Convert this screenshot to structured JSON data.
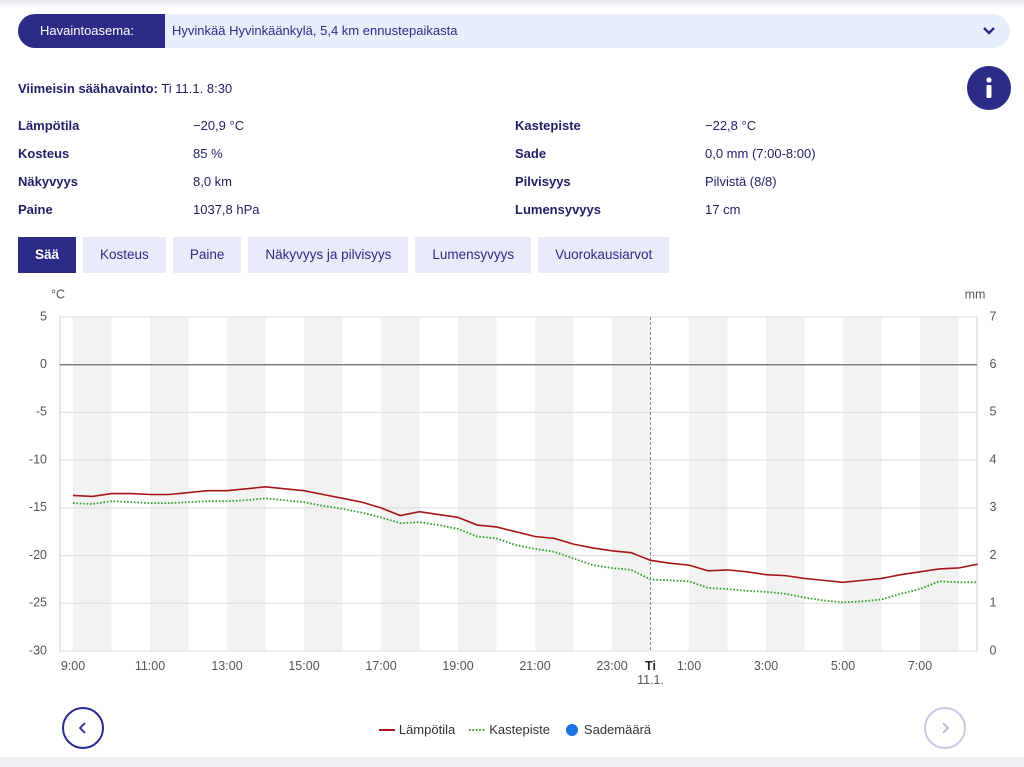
{
  "station": {
    "label": "Havaintoasema:",
    "value": "Hyvinkää Hyvinkäänkylä, 5,4 km ennustepaikasta"
  },
  "latest": {
    "label": "Viimeisin säähavainto:",
    "value": "Ti 11.1. 8:30"
  },
  "observations": [
    {
      "label": "Lämpötila",
      "value": "−20,9 °C"
    },
    {
      "label": "Kosteus",
      "value": "85 %"
    },
    {
      "label": "Näkyvyys",
      "value": "8,0 km"
    },
    {
      "label": "Paine",
      "value": "1037,8 hPa"
    },
    {
      "label": "Kastepiste",
      "value": "−22,8 °C"
    },
    {
      "label": "Sade",
      "value": "0,0 mm (7:00-8:00)"
    },
    {
      "label": "Pilvisyys",
      "value": "Pilvistä (8/8)"
    },
    {
      "label": "Lumensyvyys",
      "value": "17 cm"
    }
  ],
  "tabs": [
    "Sää",
    "Kosteus",
    "Paine",
    "Näkyvyys ja pilvisyys",
    "Lumensyvyys",
    "Vuorokausiarvot"
  ],
  "chart_data": {
    "type": "line",
    "y_label": "°C",
    "y2_label": "mm",
    "categories": [
      "9:00",
      null,
      null,
      null,
      "11:00",
      null,
      null,
      null,
      "13:00",
      null,
      null,
      null,
      "15:00",
      null,
      null,
      null,
      "17:00",
      null,
      null,
      null,
      "19:00",
      null,
      null,
      null,
      "21:00",
      null,
      null,
      null,
      "23:00",
      null,
      "Ti 11.1.",
      null,
      "1:00",
      null,
      null,
      null,
      "3:00",
      null,
      null,
      null,
      "5:00",
      null,
      null,
      null,
      "7:00",
      null,
      null,
      null
    ],
    "series": [
      {
        "name": "Lämpötila",
        "color": "#a4161a",
        "style": "solid",
        "values": [
          -13.7,
          -13.8,
          -13.5,
          -13.5,
          -13.6,
          -13.6,
          -13.4,
          -13.2,
          -13.2,
          -13.0,
          -12.8,
          -13.0,
          -13.2,
          -13.6,
          -14.0,
          -14.4,
          -15.0,
          -15.8,
          -15.4,
          -15.7,
          -16.0,
          -16.8,
          -17.0,
          -17.5,
          -18.0,
          -18.2,
          -18.8,
          -19.2,
          -19.5,
          -19.7,
          -20.5,
          -20.8,
          -21.0,
          -21.6,
          -21.5,
          -21.7,
          -22.0,
          -22.1,
          -22.4,
          -22.6,
          -22.8,
          -22.6,
          -22.4,
          -22.0,
          -21.7,
          -21.4,
          -21.3,
          -20.9
        ]
      },
      {
        "name": "Kastepiste",
        "color": "#2e9e2e",
        "style": "dotted",
        "values": [
          -14.5,
          -14.6,
          -14.3,
          -14.4,
          -14.5,
          -14.5,
          -14.4,
          -14.3,
          -14.3,
          -14.2,
          -14.0,
          -14.2,
          -14.4,
          -14.8,
          -15.1,
          -15.5,
          -16.0,
          -16.6,
          -16.5,
          -16.8,
          -17.2,
          -18.0,
          -18.2,
          -18.9,
          -19.3,
          -19.6,
          -20.3,
          -21.0,
          -21.3,
          -21.5,
          -22.5,
          -22.6,
          -22.7,
          -23.4,
          -23.5,
          -23.7,
          -23.8,
          -24.0,
          -24.4,
          -24.7,
          -24.9,
          -24.8,
          -24.6,
          -24.0,
          -23.5,
          -22.7,
          -22.8,
          -22.8
        ]
      },
      {
        "name": "Sademäärä",
        "color": "#1b73e8",
        "type": "bar",
        "axis": "y2",
        "values": [
          0,
          0,
          0,
          0,
          0,
          0,
          0,
          0,
          0,
          0,
          0,
          0,
          0,
          0,
          0,
          0,
          0,
          0,
          0,
          0,
          0,
          0,
          0,
          0,
          0,
          0,
          0,
          0,
          0,
          0,
          0,
          0,
          0,
          0,
          0,
          0,
          0,
          0,
          0,
          0,
          0,
          0,
          0,
          0,
          0,
          0,
          0,
          0
        ]
      }
    ],
    "ylim": [
      -30,
      5
    ],
    "yticks": [
      -30,
      -25,
      -20,
      -15,
      -10,
      -5,
      0,
      5
    ],
    "y2lim": [
      0,
      7
    ],
    "y2ticks": [
      0,
      1,
      2,
      3,
      4,
      5,
      6,
      7
    ],
    "grid": true,
    "legend": "bottom"
  }
}
